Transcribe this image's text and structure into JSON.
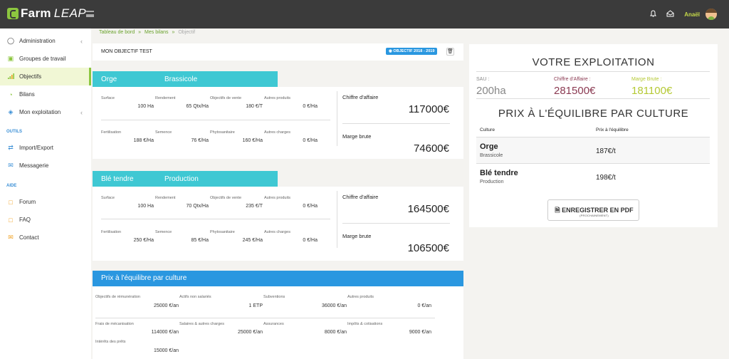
{
  "brand": {
    "farm": "Farm",
    "leap": "LEAP"
  },
  "topbar": {
    "user": "Anaël",
    "icons": [
      "bell-icon",
      "inbox-icon"
    ]
  },
  "sidebar": {
    "items": [
      {
        "label": "Administration",
        "icon": "user-shield-icon",
        "chevron": "‹"
      },
      {
        "label": "Groupes de travail",
        "icon": "group-icon"
      },
      {
        "label": "Objectifs",
        "icon": "bar-chart-icon"
      },
      {
        "label": "Bilans",
        "icon": "pie-chart-icon"
      },
      {
        "label": "Mon exploitation",
        "icon": "layers-icon",
        "chevron": "‹"
      },
      {
        "label": "Import/Export",
        "icon": "exchange-icon"
      },
      {
        "label": "Messagerie",
        "icon": "envelope-open-icon"
      },
      {
        "label": "Forum",
        "icon": "chat-icon"
      },
      {
        "label": "FAQ",
        "icon": "question-icon"
      },
      {
        "label": "Contact",
        "icon": "mail-icon"
      }
    ],
    "sections": {
      "outils": "OUTILS",
      "aide": "AIDE"
    }
  },
  "breadcrumb": {
    "home": "Tableau de bord",
    "sep1": "»",
    "bilans": "Mes bilans",
    "sep2": "»",
    "current": "Objectif"
  },
  "objective": {
    "title": "MON OBJECTIF TEST",
    "badge": "OBJECTIF 2018 - 2019",
    "trash": "🗑"
  },
  "crops": [
    {
      "name": "Orge",
      "type": "Brassicole",
      "labels": [
        "Surface",
        "Rendement",
        "Objectifs de vente",
        "Autres produits",
        "Fertilisation",
        "Semence",
        "Phytosanitaire",
        "Autres charges"
      ],
      "values": [
        "100 Ha",
        "65 Qtx/Ha",
        "180 €/T",
        "0 €/Ha",
        "188 €/Ha",
        "76 €/Ha",
        "160 €/Ha",
        "0 €/Ha"
      ],
      "ca_label": "Chiffre d'affaire",
      "ca": "117000€",
      "mb_label": "Marge brute",
      "mb": "74600€"
    },
    {
      "name": "Blé tendre",
      "type": "Production",
      "labels": [
        "Surface",
        "Rendement",
        "Objectifs de vente",
        "Autres produits",
        "Fertilisation",
        "Semence",
        "Phytosanitaire",
        "Autres charges"
      ],
      "values": [
        "100 Ha",
        "70 Qtx/Ha",
        "235 €/T",
        "0 €/Ha",
        "250 €/Ha",
        "85 €/Ha",
        "245 €/Ha",
        "0 €/Ha"
      ],
      "ca_label": "Chiffre d'affaire",
      "ca": "164500€",
      "mb_label": "Marge brute",
      "mb": "106500€"
    }
  ],
  "price": {
    "title": "Prix à l'équilibre par culture",
    "row1": [
      {
        "l": "Objectifs de rémunération",
        "v": "25000 €/an"
      },
      {
        "l": "Actifs non salariés",
        "v": "1 ETP"
      },
      {
        "l": "Subventions",
        "v": "36000 €/an"
      },
      {
        "l": "Autres produits",
        "v": "0 €/an"
      }
    ],
    "row2": [
      {
        "l": "Frais de mécanisation",
        "v": "114000 €/an"
      },
      {
        "l": "Salaires & autres charges",
        "v": "25000 €/an"
      },
      {
        "l": "Assurances",
        "v": "8000 €/an"
      },
      {
        "l": "Impôts & cotisations",
        "v": "9000 €/an"
      }
    ],
    "row3": [
      {
        "l": "Intérêts des prêts",
        "v": "15000 €/an"
      }
    ]
  },
  "exploitation": {
    "title": "VOTRE EXPLOITATION",
    "sau_label": "SAU :",
    "sau": "200ha",
    "ca_label": "Chiffre d'Affaire :",
    "ca": "281500€",
    "mb_label": "Marge Brute :",
    "mb": "181100€",
    "colors": {
      "ca": "#8b3a52",
      "mb": "#b5c934"
    },
    "sub_title": "PRIX À L'ÉQUILIBRE PAR CULTURE",
    "col_culture": "Culture",
    "col_prix": "Prix à l'équilibre",
    "rows": [
      {
        "culture": "Orge",
        "type": "Brassicole",
        "prix": "187€/t"
      },
      {
        "culture": "Blé tendre",
        "type": "Production",
        "prix": "198€/t"
      }
    ],
    "pdf_label": "ENREGISTRER EN PDF",
    "pdf_sub": "(PROCHAINEMENT)"
  }
}
